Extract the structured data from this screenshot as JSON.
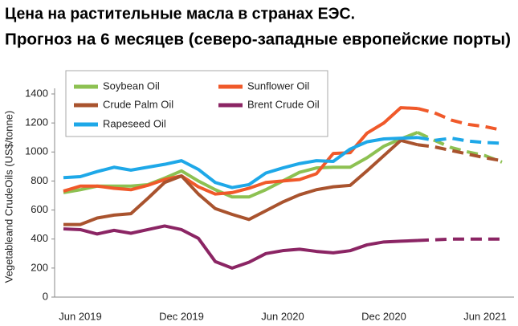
{
  "chart_data": {
    "type": "line",
    "title": "Цена на растительные масла в странах ЕЭС.",
    "subtitle": "Прогноз на 6 месяцев (северо-западные европейские порты)",
    "y_label": "Vegetableand CrudeOils (US$/tonne)",
    "categories": [
      null,
      "Jun 2019",
      null,
      null,
      null,
      null,
      null,
      "Dec 2019",
      null,
      null,
      null,
      null,
      null,
      "Jun 2020",
      null,
      null,
      null,
      null,
      null,
      "Dec 2020",
      null,
      null,
      null,
      null,
      null,
      "Jun 2021",
      null
    ],
    "ylim": [
      0,
      1400
    ],
    "yticks": [
      0,
      200,
      400,
      600,
      800,
      1000,
      1200,
      1400
    ],
    "grid": false,
    "series": [
      {
        "name": "Soybean Oil",
        "color": "#8dc152",
        "forecast_start": 21,
        "values": [
          720,
          740,
          765,
          765,
          765,
          775,
          820,
          870,
          800,
          740,
          690,
          690,
          740,
          800,
          860,
          890,
          895,
          895,
          960,
          1040,
          1090,
          1135,
          1080,
          1030,
          1000,
          975,
          930
        ]
      },
      {
        "name": "Sunflower Oil",
        "color": "#f0592a",
        "forecast_start": 21,
        "values": [
          730,
          765,
          765,
          750,
          740,
          770,
          810,
          835,
          760,
          710,
          720,
          750,
          790,
          800,
          810,
          850,
          990,
          995,
          1130,
          1200,
          1305,
          1300,
          1270,
          1220,
          1190,
          1175,
          1150
        ]
      },
      {
        "name": "Crude Palm Oil",
        "color": "#a9532e",
        "forecast_start": 21,
        "values": [
          500,
          500,
          545,
          565,
          575,
          680,
          790,
          835,
          710,
          610,
          570,
          535,
          595,
          655,
          705,
          740,
          760,
          770,
          870,
          975,
          1080,
          1050,
          1035,
          1010,
          985,
          960,
          940
        ]
      },
      {
        "name": "Brent Crude Oil",
        "color": "#8b2564",
        "forecast_start": 21,
        "values": [
          470,
          465,
          435,
          460,
          440,
          465,
          490,
          465,
          405,
          245,
          200,
          240,
          300,
          320,
          330,
          315,
          305,
          320,
          360,
          380,
          385,
          390,
          395,
          400,
          400,
          400,
          400
        ]
      },
      {
        "name": "Rapeseed Oil",
        "color": "#1ea8e8",
        "forecast_start": 21,
        "values": [
          823,
          830,
          865,
          895,
          875,
          895,
          915,
          940,
          880,
          790,
          755,
          775,
          855,
          890,
          920,
          940,
          935,
          1020,
          1070,
          1090,
          1095,
          1100,
          1080,
          1095,
          1075,
          1065,
          1060
        ]
      }
    ]
  }
}
